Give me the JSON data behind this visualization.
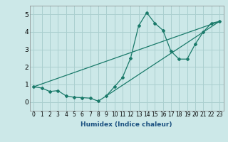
{
  "xlabel": "Humidex (Indice chaleur)",
  "background_color": "#cce8e8",
  "grid_color": "#aacfcf",
  "line_color": "#1a7a6a",
  "xlim": [
    -0.5,
    23.5
  ],
  "ylim": [
    -0.5,
    5.5
  ],
  "xticks": [
    0,
    1,
    2,
    3,
    4,
    5,
    6,
    7,
    8,
    9,
    10,
    11,
    12,
    13,
    14,
    15,
    16,
    17,
    18,
    19,
    20,
    21,
    22,
    23
  ],
  "yticks": [
    0,
    1,
    2,
    3,
    4,
    5
  ],
  "line1_x": [
    0,
    1,
    2,
    3,
    4,
    5,
    6,
    7,
    8,
    9,
    10,
    11,
    12,
    13,
    14,
    15,
    16,
    17,
    18,
    19,
    20,
    21,
    22,
    23
  ],
  "line1_y": [
    0.87,
    0.8,
    0.6,
    0.65,
    0.35,
    0.27,
    0.25,
    0.22,
    0.05,
    0.35,
    0.87,
    1.4,
    2.5,
    4.35,
    5.1,
    4.5,
    4.1,
    2.9,
    2.45,
    2.45,
    3.3,
    4.0,
    4.5,
    4.6
  ],
  "line2_x": [
    0,
    23
  ],
  "line2_y": [
    0.87,
    4.6
  ],
  "line3_x": [
    9,
    23
  ],
  "line3_y": [
    0.35,
    4.6
  ],
  "xlabel_color": "#1a5080",
  "xlabel_fontsize": 6.5,
  "tick_fontsize": 5.5,
  "ytick_fontsize": 6.5
}
